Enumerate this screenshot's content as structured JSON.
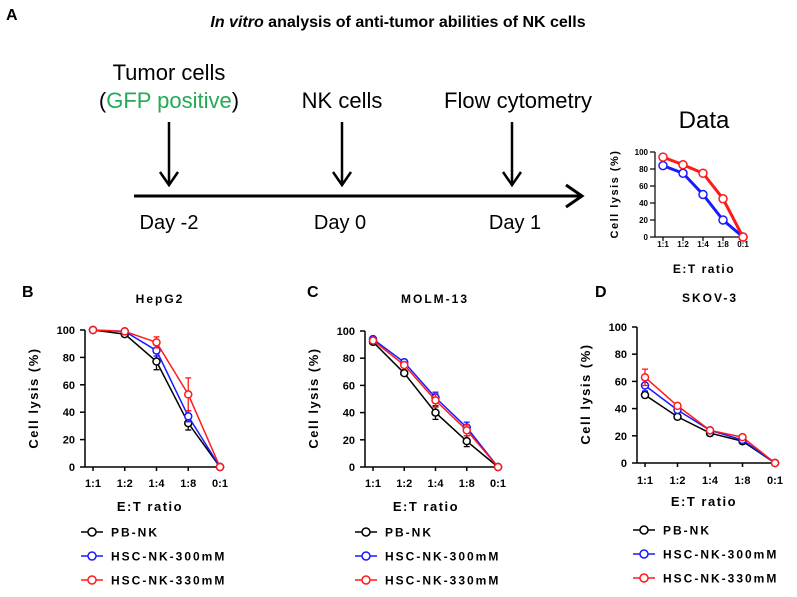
{
  "figure": {
    "title_italic": "In vitro",
    "title_rest": " analysis of anti-tumor abilities of NK cells",
    "panel_a": "A"
  },
  "timeline": {
    "tumor_line1": "Tumor cells",
    "tumor_open": "(",
    "tumor_gfp": "GFP positive",
    "tumor_close": ")",
    "nk": "NK cells",
    "flow": "Flow cytometry",
    "day_m2": "Day -2",
    "day_0": "Day 0",
    "day_1": "Day 1",
    "data_title": "Data"
  },
  "colors": {
    "pb": "#000000",
    "h300": "#1a1aff",
    "h330": "#ff1a1a",
    "gfp": "#22aa55"
  },
  "legend": {
    "pb": "PB-NK",
    "h300": "HSC-NK-300mM",
    "h330": "HSC-NK-330mM"
  },
  "chart_data": [
    {
      "id": "inset",
      "type": "line",
      "title": "Data",
      "xlabel": "E:T ratio",
      "ylabel": "Cell lysis (%)",
      "categories": [
        "1:1",
        "1:2",
        "1:4",
        "1:8",
        "0:1"
      ],
      "ylim": [
        0,
        100
      ],
      "yticks": [
        0,
        20,
        40,
        60,
        80,
        100
      ],
      "series": [
        {
          "name": "blue",
          "color": "#1a1aff",
          "values": [
            84,
            75,
            50,
            20,
            0
          ]
        },
        {
          "name": "red",
          "color": "#ff1a1a",
          "values": [
            94,
            85,
            75,
            45,
            0
          ]
        }
      ]
    },
    {
      "id": "B",
      "panel": "B",
      "type": "line",
      "title": "HepG2",
      "xlabel": "E:T ratio",
      "ylabel": "Cell lysis (%)",
      "categories": [
        "1:1",
        "1:2",
        "1:4",
        "1:8",
        "0:1"
      ],
      "ylim": [
        0,
        100
      ],
      "yticks": [
        0,
        20,
        40,
        60,
        80,
        100
      ],
      "series": [
        {
          "name": "PB-NK",
          "color": "#000000",
          "values": [
            100,
            97,
            77,
            32,
            0
          ],
          "errors": [
            0,
            1,
            6,
            5,
            0
          ]
        },
        {
          "name": "HSC-NK-300mM",
          "color": "#1a1aff",
          "values": [
            100,
            99,
            85,
            37,
            0
          ],
          "errors": [
            0,
            1,
            4,
            4,
            0
          ]
        },
        {
          "name": "HSC-NK-330mM",
          "color": "#ff1a1a",
          "values": [
            100,
            99,
            91,
            53,
            0
          ],
          "errors": [
            0,
            1,
            4,
            12,
            0
          ]
        }
      ]
    },
    {
      "id": "C",
      "panel": "C",
      "type": "line",
      "title": "MOLM-13",
      "xlabel": "E:T ratio",
      "ylabel": "Cell lysis (%)",
      "categories": [
        "1:1",
        "1:2",
        "1:4",
        "1:8",
        "0:1"
      ],
      "ylim": [
        0,
        100
      ],
      "yticks": [
        0,
        20,
        40,
        60,
        80,
        100
      ],
      "series": [
        {
          "name": "PB-NK",
          "color": "#000000",
          "values": [
            92,
            69,
            40,
            19,
            0
          ],
          "errors": [
            1,
            1,
            5,
            4,
            0
          ]
        },
        {
          "name": "HSC-NK-300mM",
          "color": "#1a1aff",
          "values": [
            94,
            77,
            51,
            29,
            0
          ],
          "errors": [
            1,
            2,
            4,
            4,
            0
          ]
        },
        {
          "name": "HSC-NK-330mM",
          "color": "#ff1a1a",
          "values": [
            93,
            75,
            49,
            27,
            0
          ],
          "errors": [
            1,
            2,
            5,
            4,
            0
          ]
        }
      ]
    },
    {
      "id": "D",
      "panel": "D",
      "type": "line",
      "title": "SKOV-3",
      "xlabel": "E:T ratio",
      "ylabel": "Cell lysis (%)",
      "categories": [
        "1:1",
        "1:2",
        "1:4",
        "1:8",
        "0:1"
      ],
      "ylim": [
        0,
        100
      ],
      "yticks": [
        0,
        20,
        40,
        60,
        80,
        100
      ],
      "series": [
        {
          "name": "PB-NK",
          "color": "#000000",
          "values": [
            50,
            34,
            22,
            16,
            0
          ],
          "errors": [
            2,
            2,
            2,
            1,
            0
          ]
        },
        {
          "name": "HSC-NK-300mM",
          "color": "#1a1aff",
          "values": [
            57,
            39,
            24,
            17,
            0
          ],
          "errors": [
            4,
            2,
            2,
            1,
            0
          ]
        },
        {
          "name": "HSC-NK-330mM",
          "color": "#ff1a1a",
          "values": [
            63,
            42,
            24,
            19,
            0
          ],
          "errors": [
            6,
            2,
            2,
            1,
            0
          ]
        }
      ]
    }
  ]
}
